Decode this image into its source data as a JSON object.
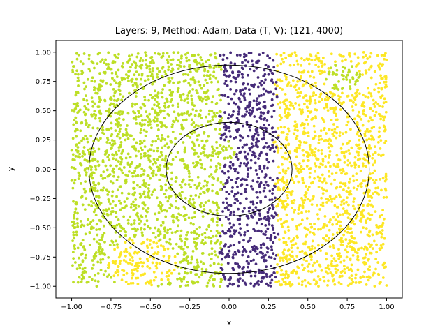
{
  "chart_data": {
    "type": "scatter",
    "title": "Layers: 9, Method: Adam, Data (T, V): (121, 4000)",
    "xlabel": "x",
    "ylabel": "y",
    "xlim": [
      -1.1,
      1.1
    ],
    "ylim": [
      -1.1,
      1.1
    ],
    "xticks": [
      -1.0,
      -0.75,
      -0.5,
      -0.25,
      0.0,
      0.25,
      0.5,
      0.75,
      1.0
    ],
    "xtick_labels": [
      "−1.00",
      "−0.75",
      "−0.50",
      "−0.25",
      "0.00",
      "0.25",
      "0.50",
      "0.75",
      "1.00"
    ],
    "yticks": [
      -1.0,
      -0.75,
      -0.5,
      -0.25,
      0.0,
      0.25,
      0.5,
      0.75,
      1.0
    ],
    "ytick_labels": [
      "−1.00",
      "−0.75",
      "−0.50",
      "−0.25",
      "0.00",
      "0.25",
      "0.50",
      "0.75",
      "1.00"
    ],
    "grid": false,
    "legend": "none",
    "n_points": 4000,
    "point_domain": {
      "x": [
        -1.0,
        1.0
      ],
      "y": [
        -1.0,
        1.0
      ]
    },
    "class_colors": {
      "yellow_green": "#bddf26",
      "purple": "#472c7a",
      "yellow": "#fde725"
    },
    "regions": [
      {
        "class": "purple",
        "rule": "vertical band",
        "x_range": [
          -0.05,
          0.3
        ]
      },
      {
        "class": "yellow_green",
        "rule": "x < -0.05"
      },
      {
        "class": "yellow",
        "rule": "x > 0.3"
      },
      {
        "class": "yellow",
        "rule": "patch",
        "center": [
          -0.55,
          -0.8
        ],
        "radius": 0.22
      },
      {
        "class": "yellow_green",
        "rule": "patch",
        "center": [
          0.72,
          0.78
        ],
        "radius": 0.12
      },
      {
        "class": "yellow_green",
        "rule": "patch",
        "center": [
          -0.05,
          0.15
        ],
        "radius": 0.1
      }
    ],
    "circles": [
      {
        "cx": 0.0,
        "cy": 0.0,
        "r": 0.4,
        "color": "#000000"
      },
      {
        "cx": 0.0,
        "cy": 0.0,
        "r": 0.89,
        "color": "#000000"
      }
    ]
  }
}
